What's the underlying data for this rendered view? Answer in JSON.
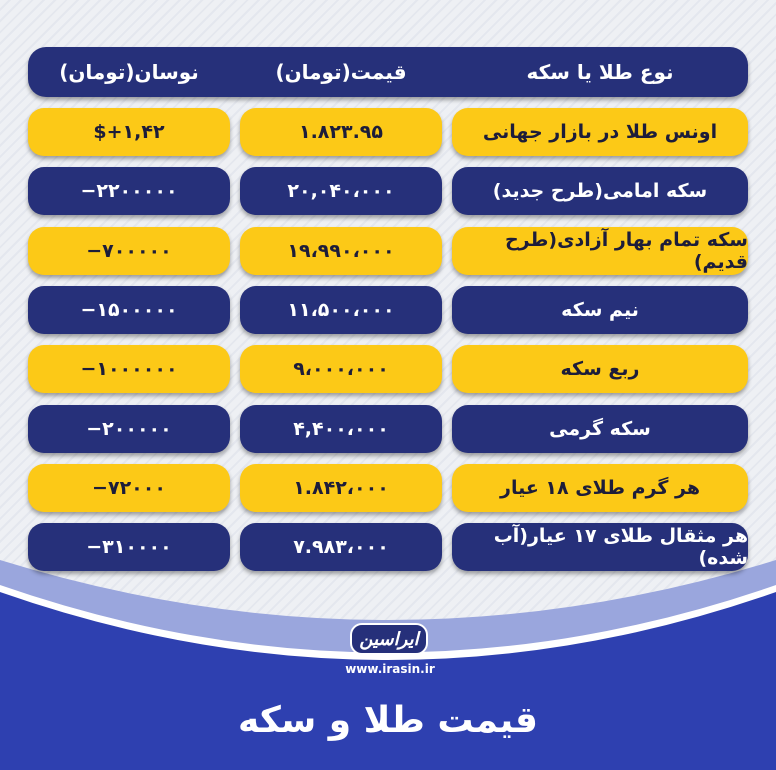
{
  "colors": {
    "dark_blue": "#26307a",
    "gold": "#fcc917",
    "bottom_blue": "#2e40b0"
  },
  "header": {
    "type": "نوع طلا یا سکه",
    "price": "قیمت(تومان)",
    "change": "نوسان(تومان)"
  },
  "rows": [
    {
      "name": "اونس طلا در بازار جهانی",
      "price": "۱.۸۲۳.۹۵",
      "change": "$+۱,۴۲",
      "style": "yellow"
    },
    {
      "name": "سکه امامی(طرح جدید)",
      "price": "۲۰,۰۴۰،۰۰۰",
      "change": "−۲۲۰۰۰۰۰",
      "style": "blue"
    },
    {
      "name": "سکه تمام بهار آزادی(طرح قدیم)",
      "price": "۱۹،۹۹۰،۰۰۰",
      "change": "−۷۰۰۰۰۰",
      "style": "yellow"
    },
    {
      "name": "نیم سکه",
      "price": "۱۱،۵۰۰،۰۰۰",
      "change": "−۱۵۰۰۰۰۰",
      "style": "blue"
    },
    {
      "name": "ربع سکه",
      "price": "۹،۰۰۰،۰۰۰",
      "change": "−۱۰۰۰۰۰۰",
      "style": "yellow"
    },
    {
      "name": "سکه گرمی",
      "price": "۴,۴۰۰،۰۰۰",
      "change": "−۲۰۰۰۰۰",
      "style": "blue"
    },
    {
      "name": "هر گرم طلای ۱۸ عیار",
      "price": "۱.۸۴۲،۰۰۰",
      "change": "−۷۲۰۰۰",
      "style": "yellow"
    },
    {
      "name": "هر مثقال طلای ۱۷ عیار(آب شده)",
      "price": "۷.۹۸۳،۰۰۰",
      "change": "−۳۱۰۰۰۰",
      "style": "blue"
    }
  ],
  "brand": {
    "logo_text": "ایراسین",
    "url": "www.irasin.ir"
  },
  "title": "قیمت طلا و سکه"
}
